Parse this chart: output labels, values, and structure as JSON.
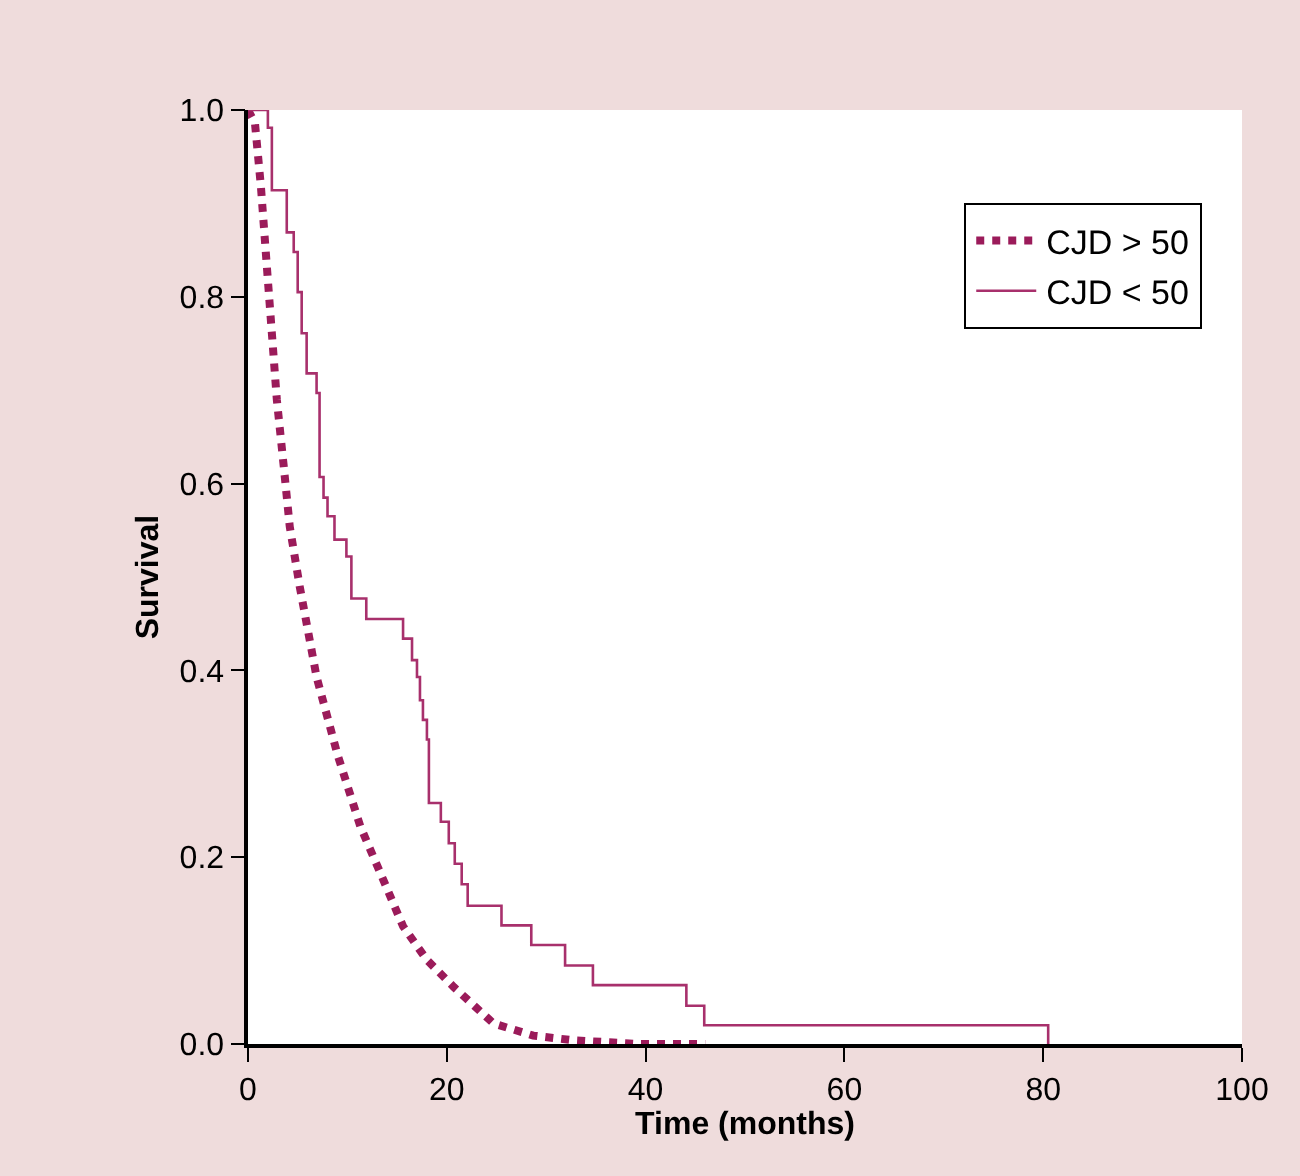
{
  "chart_data": {
    "type": "step",
    "xlabel": "Time (months)",
    "ylabel": "Survival",
    "xlim": [
      0,
      100
    ],
    "xticks": [
      0,
      20,
      40,
      60,
      80,
      100
    ],
    "ylim": [
      0,
      1.0
    ],
    "yticks": [
      {
        "value": 0,
        "label": "0.0"
      },
      0.2,
      0.4,
      0.6,
      0.8,
      {
        "value": 1.0,
        "label": "1.0"
      }
    ],
    "legend": "top right",
    "marker": "none",
    "series": [
      {
        "name": "CJD > 50",
        "type": "line",
        "line_style": "dotted",
        "color": "#9b1b5a",
        "x": [
          0,
          0.7,
          1.3,
          1.9,
          2.4,
          2.9,
          3.6,
          4.2,
          5.2,
          6.9,
          9.0,
          11.3,
          13.6,
          15.6,
          18.0,
          20.7,
          24.7,
          28.7,
          32.7,
          39.4,
          46
        ],
        "values": [
          1.0,
          0.986,
          0.918,
          0.832,
          0.761,
          0.69,
          0.618,
          0.554,
          0.49,
          0.393,
          0.31,
          0.233,
          0.176,
          0.126,
          0.09,
          0.061,
          0.022,
          0.009,
          0.004,
          0,
          0
        ]
      },
      {
        "name": "CJD < 50",
        "line_style": "solid",
        "color": "#a8306c",
        "x": [
          0,
          2.0,
          2.4,
          3.9,
          4.6,
          5.0,
          5.4,
          5.9,
          6.9,
          7.2,
          7.6,
          8.0,
          8.7,
          9.9,
          10.4,
          11.9,
          15.6,
          16.5,
          17.0,
          17.3,
          17.6,
          18.0,
          18.2,
          19.4,
          20.2,
          20.8,
          21.5,
          22.1,
          25.5,
          28.5,
          31.9,
          34.7,
          44.1,
          45.9,
          80.5
        ],
        "values": [
          1.0,
          0.981,
          0.914,
          0.869,
          0.848,
          0.805,
          0.761,
          0.718,
          0.697,
          0.607,
          0.585,
          0.565,
          0.54,
          0.522,
          0.477,
          0.455,
          0.434,
          0.411,
          0.393,
          0.368,
          0.347,
          0.326,
          0.258,
          0.238,
          0.215,
          0.193,
          0.171,
          0.148,
          0.127,
          0.106,
          0.084,
          0.063,
          0.041,
          0.02,
          0
        ]
      }
    ]
  }
}
